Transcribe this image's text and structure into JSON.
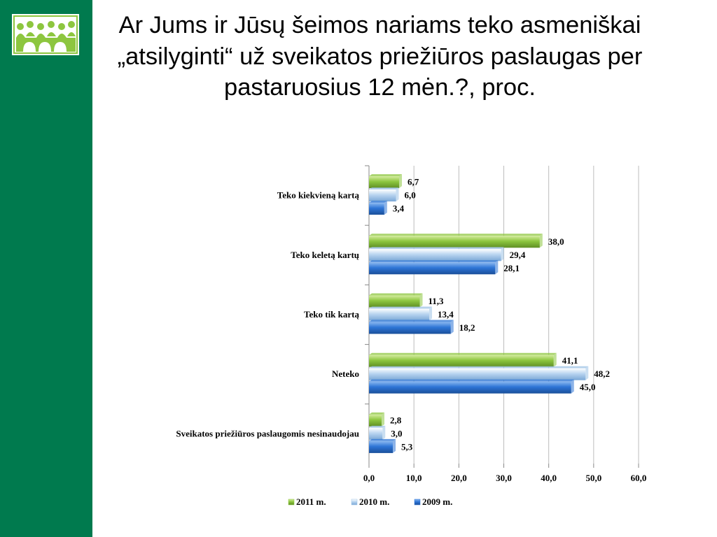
{
  "slide": {
    "title": "Ar Jums ir Jūsų šeimos nariams teko asmeniškai „atsilyginti“ už sveikatos priežiūros paslaugas per pastaruosius 12 mėn.?, proc.",
    "accent_color": "#007a4e",
    "logo_icon": "people-group-logo"
  },
  "chart_data": {
    "type": "bar",
    "orientation": "horizontal",
    "categories": [
      "Teko kiekvieną kartą",
      "Teko keletą kartų",
      "Teko tik kartą",
      "Neteko",
      "Sveikatos priežiūros paslaugomis nesinaudojau"
    ],
    "series": [
      {
        "name": "2011 m.",
        "color": "#8dc63f",
        "values": [
          6.7,
          38.0,
          11.3,
          41.1,
          2.8
        ],
        "labels": [
          "6,7",
          "38,0",
          "11,3",
          "41,1",
          "2,8"
        ]
      },
      {
        "name": "2010 m.",
        "color": "#9dc3e6",
        "values": [
          6.0,
          29.4,
          13.4,
          48.2,
          3.0
        ],
        "labels": [
          "6,0",
          "29,4",
          "13,4",
          "48,2",
          "3,0"
        ]
      },
      {
        "name": "2009 m.",
        "color": "#2e75d6",
        "values": [
          3.4,
          28.1,
          18.2,
          45.0,
          5.3
        ],
        "labels": [
          "3,4",
          "28,1",
          "18,2",
          "45,0",
          "5,3"
        ]
      }
    ],
    "xlim": [
      0,
      60
    ],
    "xticks": [
      "0,0",
      "10,0",
      "20,0",
      "30,0",
      "40,0",
      "50,0",
      "60,0"
    ],
    "grid": true,
    "legend_position": "bottom"
  }
}
